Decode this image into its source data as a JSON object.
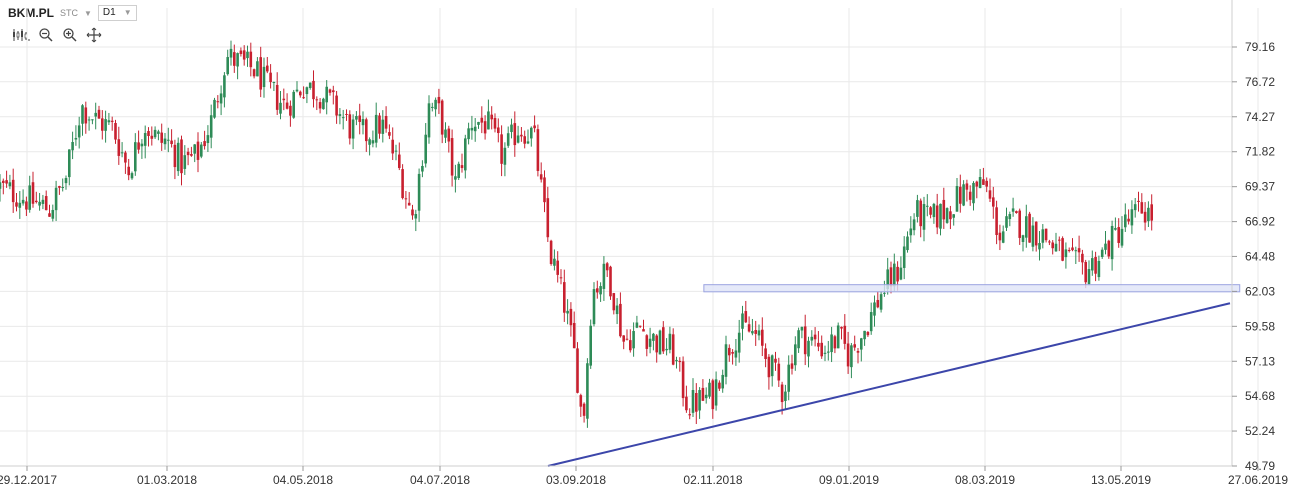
{
  "header": {
    "symbol": "BKM.PL",
    "quote_type": "STC",
    "interval": "D1"
  },
  "toolbar_icons": [
    "candle-type-icon",
    "zoom-out-icon",
    "zoom-in-icon",
    "crosshair-icon"
  ],
  "colors": {
    "up": "#2e8b57",
    "down": "#c8202f",
    "trendline": "#3c46aa",
    "zone_fill": "#dfe3f7",
    "zone_stroke": "#9aa3e0",
    "grid": "#e9e9e9"
  },
  "chart_data": {
    "type": "candlestick",
    "instrument": "BKM.PL",
    "y_ticks": [
      "79.16",
      "76.72",
      "74.27",
      "71.82",
      "69.37",
      "66.92",
      "64.48",
      "62.03",
      "59.58",
      "57.13",
      "54.68",
      "52.24",
      "49.79"
    ],
    "ylim": [
      49.79,
      81.0
    ],
    "x_ticks": [
      "29.12.2017",
      "01.03.2018",
      "04.05.2018",
      "04.07.2018",
      "03.09.2018",
      "02.11.2018",
      "09.01.2019",
      "08.03.2019",
      "13.05.2019",
      "27.06.2019"
    ],
    "grid": true,
    "path": [
      [
        "29.12.2017",
        68.5
      ],
      [
        "08.01.2018",
        67.8
      ],
      [
        "15.01.2018",
        69.8
      ],
      [
        "22.01.2018",
        75.0
      ],
      [
        "29.01.2018",
        74.0
      ],
      [
        "05.02.2018",
        73.5
      ],
      [
        "12.02.2018",
        70.5
      ],
      [
        "19.02.2018",
        73.8
      ],
      [
        "26.02.2018",
        72.5
      ],
      [
        "01.03.2018",
        72.6
      ],
      [
        "08.03.2018",
        71.0
      ],
      [
        "15.03.2018",
        71.5
      ],
      [
        "22.03.2018",
        74.0
      ],
      [
        "29.03.2018",
        78.5
      ],
      [
        "05.04.2018",
        78.0
      ],
      [
        "12.04.2018",
        77.5
      ],
      [
        "19.04.2018",
        76.0
      ],
      [
        "26.04.2018",
        75.0
      ],
      [
        "04.05.2018",
        76.5
      ],
      [
        "11.05.2018",
        76.0
      ],
      [
        "18.05.2018",
        75.0
      ],
      [
        "25.05.2018",
        73.5
      ],
      [
        "01.06.2018",
        73.0
      ],
      [
        "08.06.2018",
        73.8
      ],
      [
        "15.06.2018",
        71.0
      ],
      [
        "22.06.2018",
        67.0
      ],
      [
        "29.06.2018",
        75.0
      ],
      [
        "04.07.2018",
        74.5
      ],
      [
        "11.07.2018",
        69.5
      ],
      [
        "18.07.2018",
        74.0
      ],
      [
        "25.07.2018",
        73.8
      ],
      [
        "01.08.2018",
        71.5
      ],
      [
        "08.08.2018",
        73.5
      ],
      [
        "15.08.2018",
        73.0
      ],
      [
        "22.08.2018",
        65.0
      ],
      [
        "29.08.2018",
        61.0
      ],
      [
        "03.09.2018",
        57.0
      ],
      [
        "06.09.2018",
        52.5
      ],
      [
        "10.09.2018",
        62.0
      ],
      [
        "17.09.2018",
        63.5
      ],
      [
        "24.09.2018",
        58.5
      ],
      [
        "01.10.2018",
        59.5
      ],
      [
        "08.10.2018",
        58.5
      ],
      [
        "15.10.2018",
        58.0
      ],
      [
        "22.10.2018",
        54.0
      ],
      [
        "29.10.2018",
        54.5
      ],
      [
        "02.11.2018",
        54.8
      ],
      [
        "09.11.2018",
        58.0
      ],
      [
        "16.11.2018",
        59.5
      ],
      [
        "23.11.2018",
        59.0
      ],
      [
        "30.11.2018",
        57.0
      ],
      [
        "07.12.2018",
        55.0
      ],
      [
        "14.12.2018",
        59.0
      ],
      [
        "21.12.2018",
        58.5
      ],
      [
        "28.12.2018",
        58.0
      ],
      [
        "04.01.2019",
        58.8
      ],
      [
        "09.01.2019",
        57.5
      ],
      [
        "16.01.2019",
        59.5
      ],
      [
        "23.01.2019",
        62.0
      ],
      [
        "30.01.2019",
        63.5
      ],
      [
        "06.02.2019",
        67.5
      ],
      [
        "13.02.2019",
        67.0
      ],
      [
        "20.02.2019",
        67.8
      ],
      [
        "27.02.2019",
        69.0
      ],
      [
        "08.03.2019",
        69.5
      ],
      [
        "15.03.2019",
        66.0
      ],
      [
        "22.03.2019",
        67.0
      ],
      [
        "29.03.2019",
        66.5
      ],
      [
        "05.04.2019",
        66.0
      ],
      [
        "12.04.2019",
        65.0
      ],
      [
        "19.04.2019",
        64.0
      ],
      [
        "26.04.2019",
        63.5
      ],
      [
        "03.05.2019",
        64.5
      ],
      [
        "13.05.2019",
        66.5
      ],
      [
        "20.05.2019",
        67.8
      ],
      [
        "24.05.2019",
        67.2
      ]
    ],
    "annotations": {
      "support_zone": {
        "from": "29.10.2018",
        "to": "21.06.2019",
        "low": 62.0,
        "high": 62.5
      },
      "trendline": {
        "from": [
          "03.09.2018",
          49.79
        ],
        "to": [
          "27.06.2019",
          61.2
        ]
      }
    }
  }
}
